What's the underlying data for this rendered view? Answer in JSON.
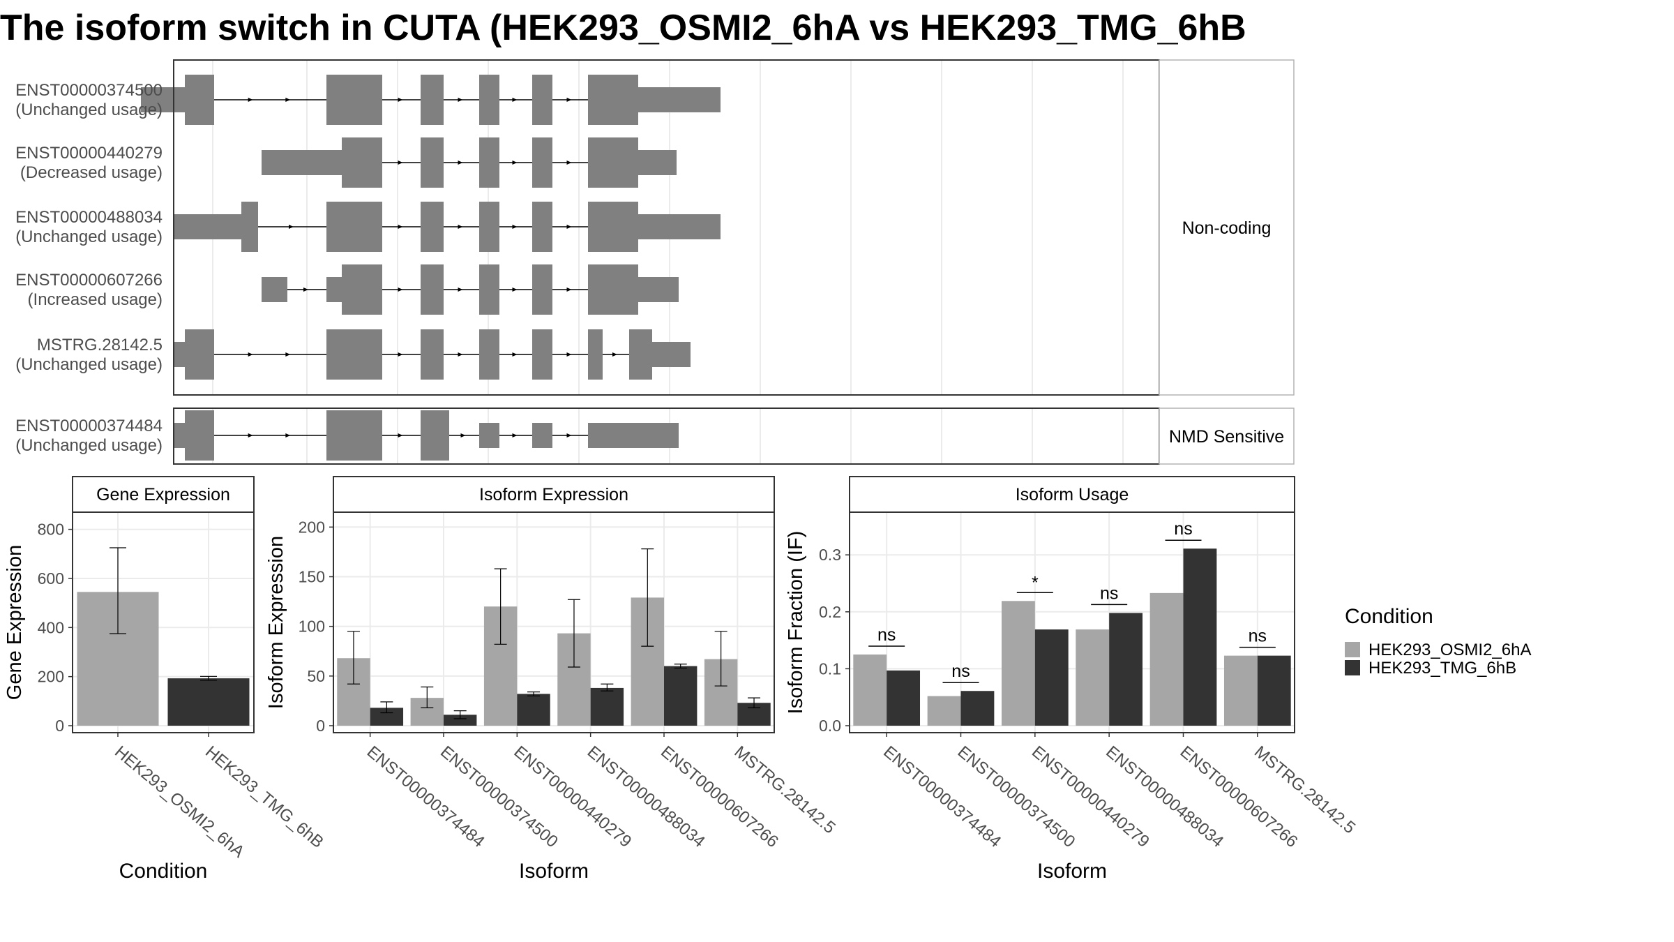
{
  "title": "The isoform switch in CUTA (HEK293_OSMI2_6hA vs HEK293_TMG_6hB",
  "colors": {
    "cond1": "#a6a6a6",
    "cond2": "#333333",
    "structure": "#808080",
    "panel_border": "#333333",
    "strip_border": "#b3b3b3",
    "grid": "#ebebeb"
  },
  "structure": {
    "groups": [
      {
        "label": "Non-coding",
        "isoforms": [
          {
            "id": "ENST00000374500",
            "status": "(Unchanged usage)",
            "thin": [
              [
                202,
                265
              ],
              [
                915,
                1033
              ]
            ],
            "thick": [
              [
                265,
                307
              ],
              [
                468,
                548
              ],
              [
                603,
                636
              ],
              [
                687,
                716
              ],
              [
                763,
                792
              ],
              [
                843,
                915
              ]
            ],
            "introns": [
              [
                307,
                468
              ],
              [
                548,
                603
              ],
              [
                636,
                687
              ],
              [
                716,
                763
              ],
              [
                792,
                843
              ]
            ]
          },
          {
            "id": "ENST00000440279",
            "status": "(Decreased usage)",
            "thin": [
              [
                375,
                490
              ],
              [
                915,
                970
              ]
            ],
            "thick": [
              [
                490,
                548
              ],
              [
                603,
                636
              ],
              [
                687,
                716
              ],
              [
                763,
                792
              ],
              [
                843,
                915
              ]
            ],
            "introns": [
              [
                548,
                603
              ],
              [
                636,
                687
              ],
              [
                716,
                763
              ],
              [
                792,
                843
              ]
            ]
          },
          {
            "id": "ENST00000488034",
            "status": "(Unchanged usage)",
            "thin": [
              [
                248,
                346
              ],
              [
                915,
                1033
              ]
            ],
            "thick": [
              [
                346,
                370
              ],
              [
                468,
                548
              ],
              [
                603,
                636
              ],
              [
                687,
                716
              ],
              [
                763,
                792
              ],
              [
                843,
                915
              ]
            ],
            "introns": [
              [
                370,
                468
              ],
              [
                548,
                603
              ],
              [
                636,
                687
              ],
              [
                716,
                763
              ],
              [
                792,
                843
              ]
            ]
          },
          {
            "id": "ENST00000607266",
            "status": "(Increased usage)",
            "thin": [
              [
                375,
                412
              ],
              [
                468,
                490
              ],
              [
                915,
                973
              ]
            ],
            "thick": [
              [
                490,
                548
              ],
              [
                603,
                636
              ],
              [
                687,
                716
              ],
              [
                763,
                792
              ],
              [
                843,
                915
              ]
            ],
            "introns": [
              [
                412,
                468
              ],
              [
                548,
                603
              ],
              [
                636,
                687
              ],
              [
                716,
                763
              ],
              [
                792,
                843
              ]
            ]
          },
          {
            "id": "MSTRG.28142.5",
            "status": "(Unchanged usage)",
            "thin": [
              [
                248,
                265
              ],
              [
                935,
                990
              ]
            ],
            "thick": [
              [
                265,
                307
              ],
              [
                468,
                548
              ],
              [
                603,
                636
              ],
              [
                687,
                716
              ],
              [
                763,
                792
              ],
              [
                843,
                864
              ],
              [
                902,
                935
              ]
            ],
            "introns": [
              [
                307,
                468
              ],
              [
                548,
                603
              ],
              [
                636,
                687
              ],
              [
                716,
                763
              ],
              [
                792,
                843
              ],
              [
                864,
                902
              ]
            ]
          }
        ]
      },
      {
        "label": "NMD Sensitive",
        "isoforms": [
          {
            "id": "ENST00000374484",
            "status": "(Unchanged usage)",
            "thin": [
              [
                248,
                265
              ],
              [
                687,
                716
              ],
              [
                763,
                792
              ],
              [
                843,
                973
              ]
            ],
            "thick": [
              [
                265,
                307
              ],
              [
                468,
                548
              ],
              [
                603,
                644
              ]
            ],
            "introns": [
              [
                307,
                468
              ],
              [
                548,
                603
              ],
              [
                644,
                687
              ],
              [
                716,
                763
              ],
              [
                792,
                843
              ]
            ]
          }
        ]
      }
    ]
  },
  "legend": {
    "title": "Condition",
    "items": [
      "HEK293_OSMI2_6hA",
      "HEK293_TMG_6hB"
    ]
  },
  "chart_data": [
    {
      "type": "bar",
      "strip": "Gene Expression",
      "xlabel": "Condition",
      "ylabel": "Gene Expression",
      "ylim": [
        0,
        870
      ],
      "yticks": [
        0,
        200,
        400,
        600,
        800
      ],
      "categories": [
        "HEK293_OSMI2_6hA",
        "HEK293_TMG_6hB"
      ],
      "values": [
        545,
        193
      ],
      "errors": [
        [
          375,
          725
        ],
        [
          185,
          201
        ]
      ]
    },
    {
      "type": "bar",
      "strip": "Isoform Expression",
      "xlabel": "Isoform",
      "ylabel": "Isoform Expression",
      "ylim": [
        0,
        215
      ],
      "yticks": [
        0,
        50,
        100,
        150,
        200
      ],
      "categories": [
        "ENST00000374484",
        "ENST00000374500",
        "ENST00000440279",
        "ENST00000488034",
        "ENST00000607266",
        "MSTRG.28142.5"
      ],
      "series": [
        {
          "name": "HEK293_OSMI2_6hA",
          "values": [
            68,
            28,
            120,
            93,
            129,
            67
          ],
          "errors": [
            [
              42,
              95
            ],
            [
              18,
              39
            ],
            [
              82,
              158
            ],
            [
              59,
              127
            ],
            [
              80,
              178
            ],
            [
              40,
              95
            ]
          ]
        },
        {
          "name": "HEK293_TMG_6hB",
          "values": [
            18,
            11,
            32,
            38,
            60,
            23
          ],
          "errors": [
            [
              13,
              24
            ],
            [
              7,
              15
            ],
            [
              30,
              34
            ],
            [
              35,
              42
            ],
            [
              58,
              62
            ],
            [
              18,
              28
            ]
          ]
        }
      ]
    },
    {
      "type": "bar",
      "strip": "Isoform Usage",
      "xlabel": "Isoform",
      "ylabel": "Isoform Fraction (IF)",
      "ylim": [
        0,
        0.375
      ],
      "yticks": [
        0,
        0.1,
        0.2,
        0.3
      ],
      "ytick_labels": [
        "0.0",
        "0.1",
        "0.2",
        "0.3"
      ],
      "categories": [
        "ENST00000374484",
        "ENST00000374500",
        "ENST00000440279",
        "ENST00000488034",
        "ENST00000607266",
        "MSTRG.28142.5"
      ],
      "series": [
        {
          "name": "HEK293_OSMI2_6hA",
          "values": [
            0.125,
            0.052,
            0.219,
            0.169,
            0.233,
            0.123
          ]
        },
        {
          "name": "HEK293_TMG_6hB",
          "values": [
            0.097,
            0.061,
            0.169,
            0.198,
            0.311,
            0.123
          ]
        }
      ],
      "significance": [
        "ns",
        "ns",
        "*",
        "ns",
        "ns",
        "ns"
      ]
    }
  ]
}
